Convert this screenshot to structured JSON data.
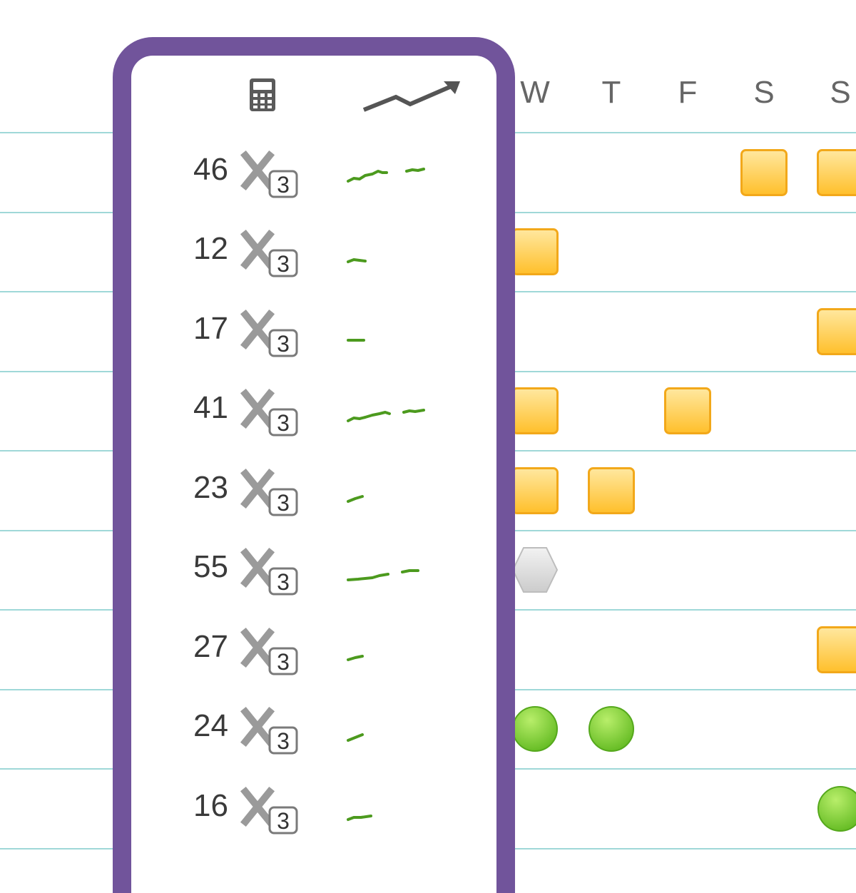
{
  "header": {
    "calculator_icon": "calculator-icon",
    "trend_icon": "trend-arrow-icon",
    "days": [
      "W",
      "T",
      "F",
      "S",
      "S"
    ]
  },
  "colors": {
    "accent_border": "#71549b",
    "row_line": "#9fd8d8",
    "sparkline": "#4c9a1e",
    "square_mark": "#ffc83a",
    "circle_mark": "#74cc2a",
    "hexagon_mark": "#d8d8d8"
  },
  "rows": [
    {
      "count": "46",
      "multiplier": "3",
      "marks": [
        {
          "day": 3,
          "shape": "square"
        },
        {
          "day": 4,
          "shape": "square"
        }
      ]
    },
    {
      "count": "12",
      "multiplier": "3",
      "marks": [
        {
          "day": 0,
          "shape": "square"
        }
      ]
    },
    {
      "count": "17",
      "multiplier": "3",
      "marks": [
        {
          "day": 4,
          "shape": "square"
        }
      ]
    },
    {
      "count": "41",
      "multiplier": "3",
      "marks": [
        {
          "day": 0,
          "shape": "square"
        },
        {
          "day": 2,
          "shape": "square"
        }
      ]
    },
    {
      "count": "23",
      "multiplier": "3",
      "marks": [
        {
          "day": 0,
          "shape": "square"
        },
        {
          "day": 1,
          "shape": "square"
        }
      ]
    },
    {
      "count": "55",
      "multiplier": "3",
      "marks": [
        {
          "day": 0,
          "shape": "hexagon"
        }
      ]
    },
    {
      "count": "27",
      "multiplier": "3",
      "marks": [
        {
          "day": 4,
          "shape": "square"
        }
      ]
    },
    {
      "count": "24",
      "multiplier": "3",
      "marks": [
        {
          "day": 0,
          "shape": "circle"
        },
        {
          "day": 1,
          "shape": "circle"
        }
      ]
    },
    {
      "count": "16",
      "multiplier": "3",
      "marks": [
        {
          "day": 4,
          "shape": "circle"
        }
      ]
    }
  ]
}
